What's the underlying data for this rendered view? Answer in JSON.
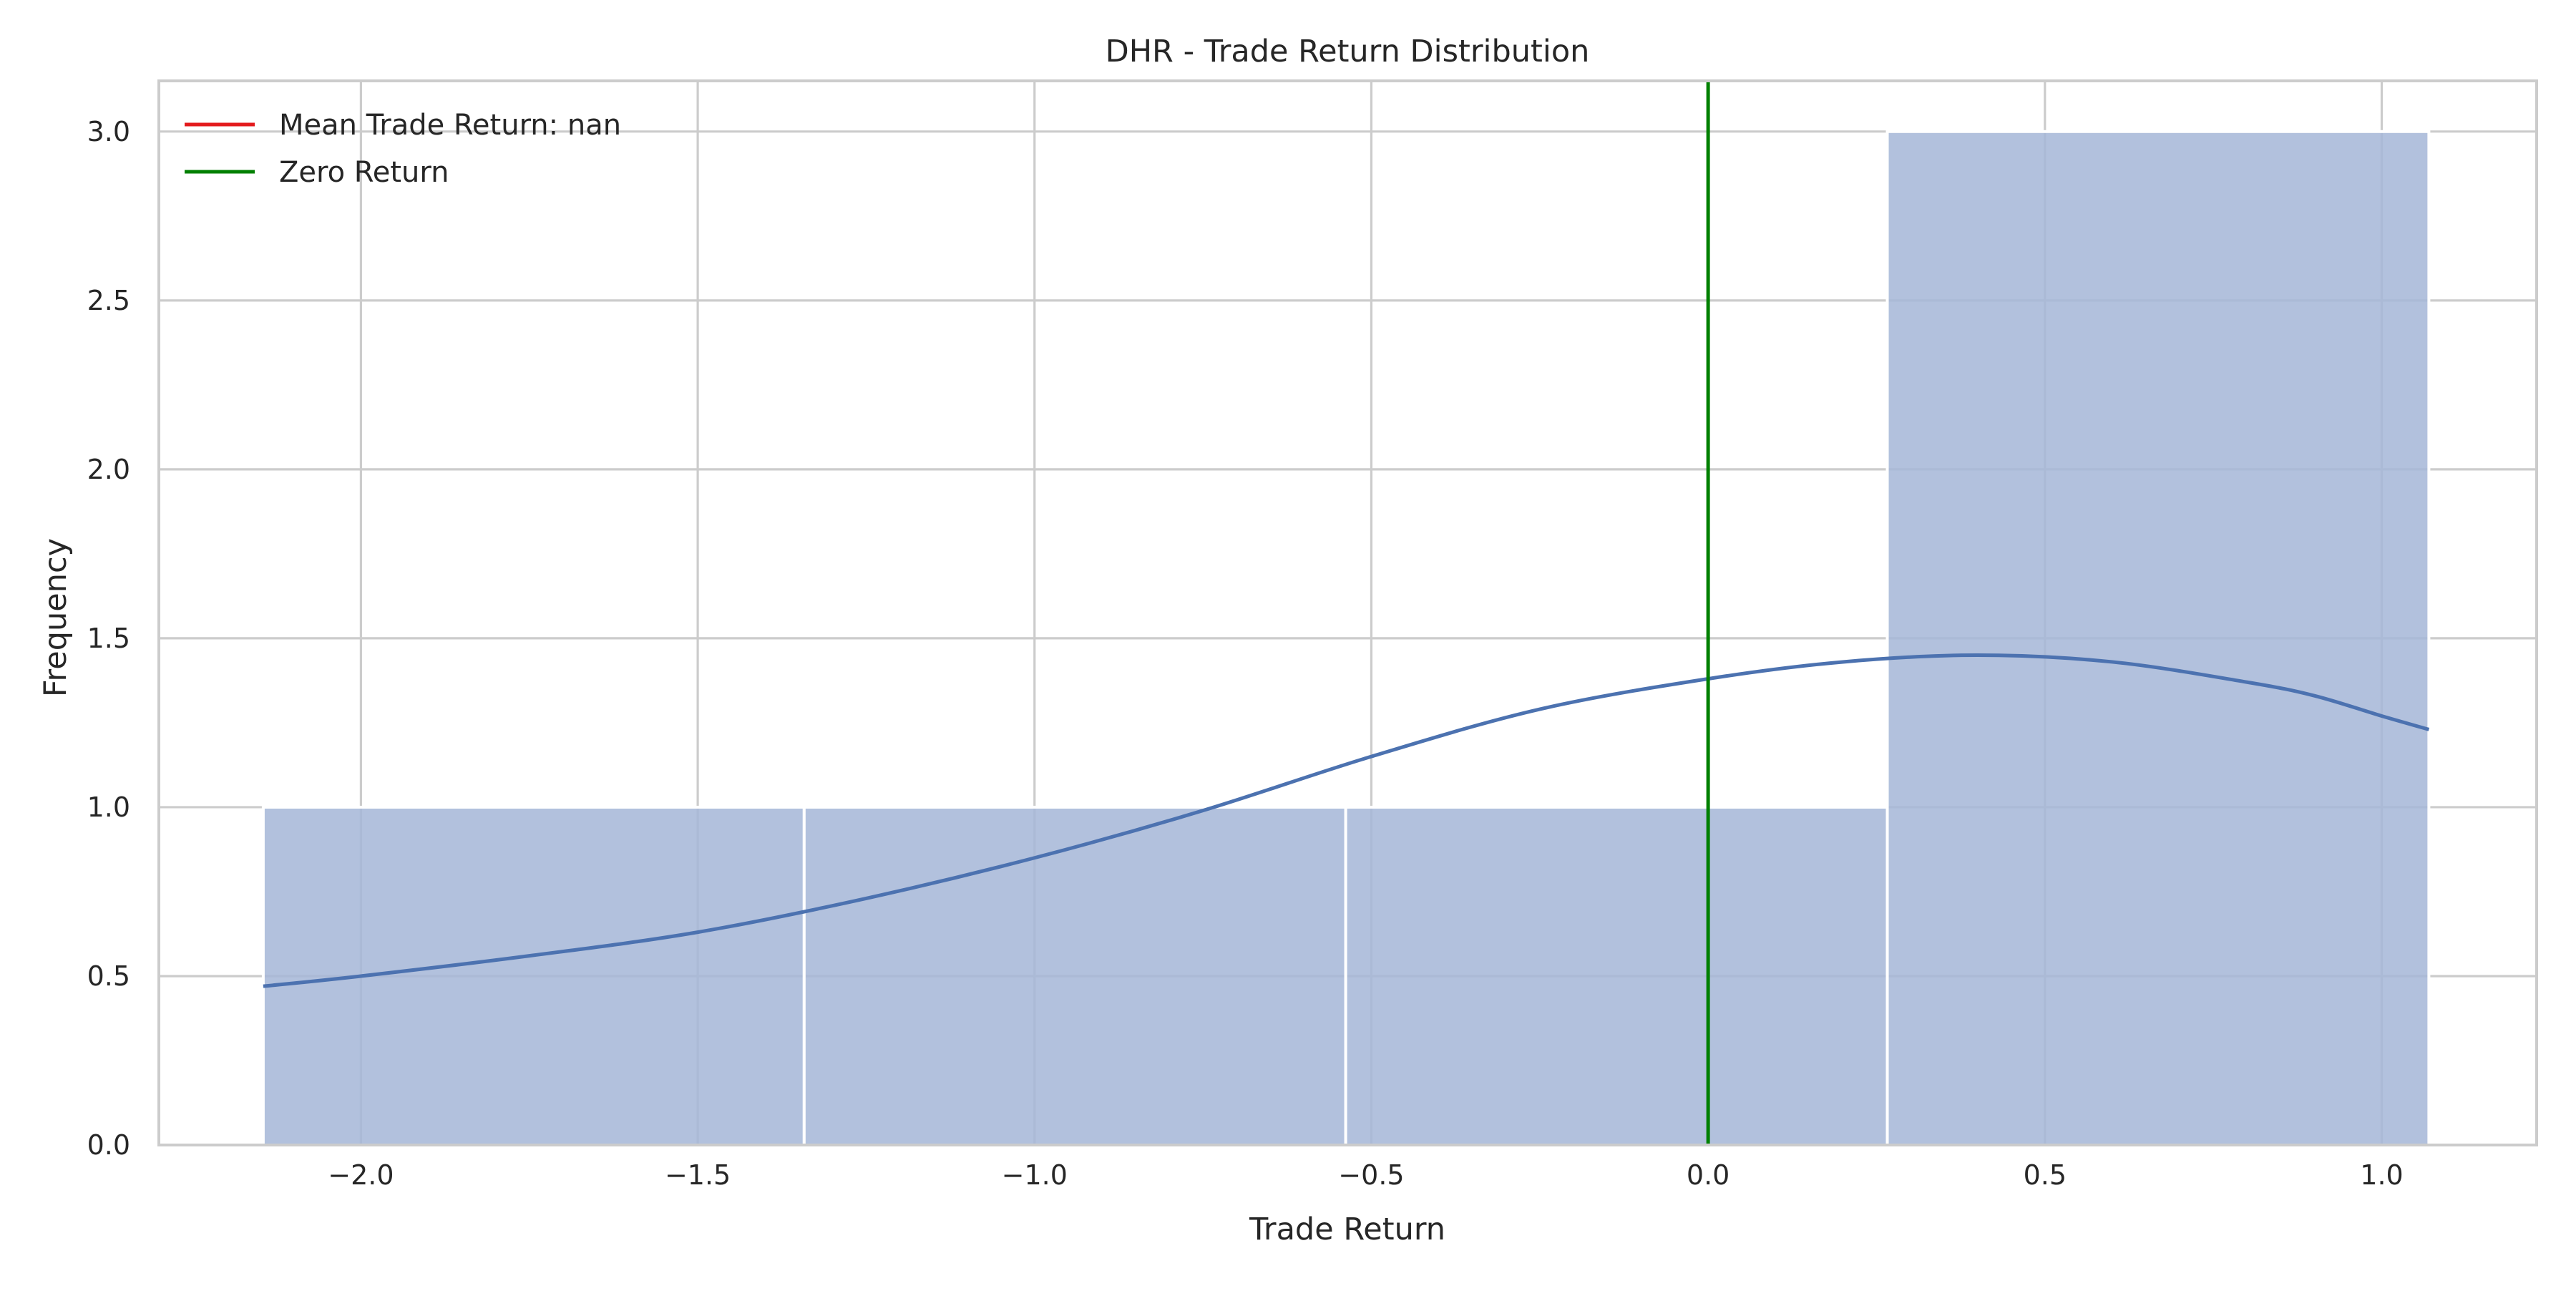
{
  "chart_data": {
    "type": "histogram",
    "title": "DHR - Trade Return Distribution",
    "xlabel": "Trade Return",
    "ylabel": "Frequency",
    "xlim": [
      -2.3,
      1.23
    ],
    "ylim": [
      0,
      3.15
    ],
    "xticks": [
      -2.0,
      -1.5,
      -1.0,
      -0.5,
      0.0,
      0.5,
      1.0
    ],
    "xtick_labels": [
      "−2.0",
      "−1.5",
      "−1.0",
      "−0.5",
      "0.0",
      "0.5",
      "1.0"
    ],
    "yticks": [
      0.0,
      0.5,
      1.0,
      1.5,
      2.0,
      2.5,
      3.0
    ],
    "ytick_labels": [
      "0.0",
      "0.5",
      "1.0",
      "1.5",
      "2.0",
      "2.5",
      "3.0"
    ],
    "grid": true,
    "bins": [
      {
        "x0": -2.145,
        "x1": -1.342,
        "count": 1
      },
      {
        "x0": -1.342,
        "x1": -0.538,
        "count": 1
      },
      {
        "x0": -0.538,
        "x1": 0.266,
        "count": 1
      },
      {
        "x0": 0.266,
        "x1": 1.07,
        "count": 3
      }
    ],
    "kde": {
      "x": [
        -2.145,
        -2.0,
        -1.75,
        -1.5,
        -1.25,
        -1.0,
        -0.75,
        -0.5,
        -0.25,
        0.0,
        0.2,
        0.4,
        0.6,
        0.8,
        0.9,
        1.0,
        1.07
      ],
      "y": [
        0.47,
        0.5,
        0.56,
        0.63,
        0.73,
        0.85,
        0.99,
        1.15,
        1.29,
        1.38,
        1.43,
        1.45,
        1.43,
        1.37,
        1.33,
        1.27,
        1.23
      ]
    },
    "vlines": [
      {
        "name": "Zero Return",
        "x": 0.0,
        "color": "#008000"
      }
    ],
    "legend": {
      "placement": "top-left",
      "entries": [
        {
          "label": "Mean Trade Return: nan",
          "color": "#e31a1c"
        },
        {
          "label": "Zero Return",
          "color": "#008000"
        }
      ]
    },
    "colors": {
      "bar_fill": "#a4b6d7",
      "kde_line": "#4c72b0",
      "grid": "#cccccc",
      "spine": "#cccccc"
    }
  }
}
